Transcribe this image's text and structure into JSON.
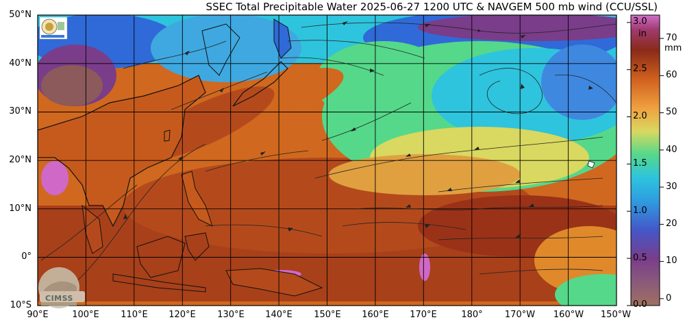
{
  "title": "SSEC Total Precipitable Water  2025-06-27 1200 UTC & NAVGEM 500 mb wind (CCU/SSL)",
  "lat_labels": [
    "50°N",
    "40°N",
    "30°N",
    "20°N",
    "10°N",
    "0°",
    "10°S"
  ],
  "lon_labels": [
    "90°E",
    "100°E",
    "110°E",
    "120°E",
    "130°E",
    "140°E",
    "150°E",
    "160°E",
    "170°E",
    "180°",
    "170°W",
    "160°W",
    "150°W"
  ],
  "colorbar": {
    "inch_ticks": [
      "3.0",
      "2.5",
      "2.0",
      "1.5",
      "1.0",
      "0.5",
      "0.0"
    ],
    "inch_unit": "in",
    "mm_ticks": [
      "70",
      "60",
      "50",
      "40",
      "30",
      "20",
      "10",
      "0"
    ],
    "mm_unit": "mm"
  },
  "logo_text": "CIMSS",
  "icons": [
    "ssec-seal-icon",
    "cimss-logo-icon"
  ],
  "colors": {
    "very_dry": "#8c5a5a",
    "dry_purple": "#7a3d8a",
    "blue": "#2f6ad8",
    "cyan": "#2ec4dd",
    "green": "#55d88a",
    "yellow": "#d9d860",
    "orange": "#e0892a",
    "dark_orange": "#c65a1c",
    "brown": "#8a2a18",
    "pink": "#d068c8"
  }
}
